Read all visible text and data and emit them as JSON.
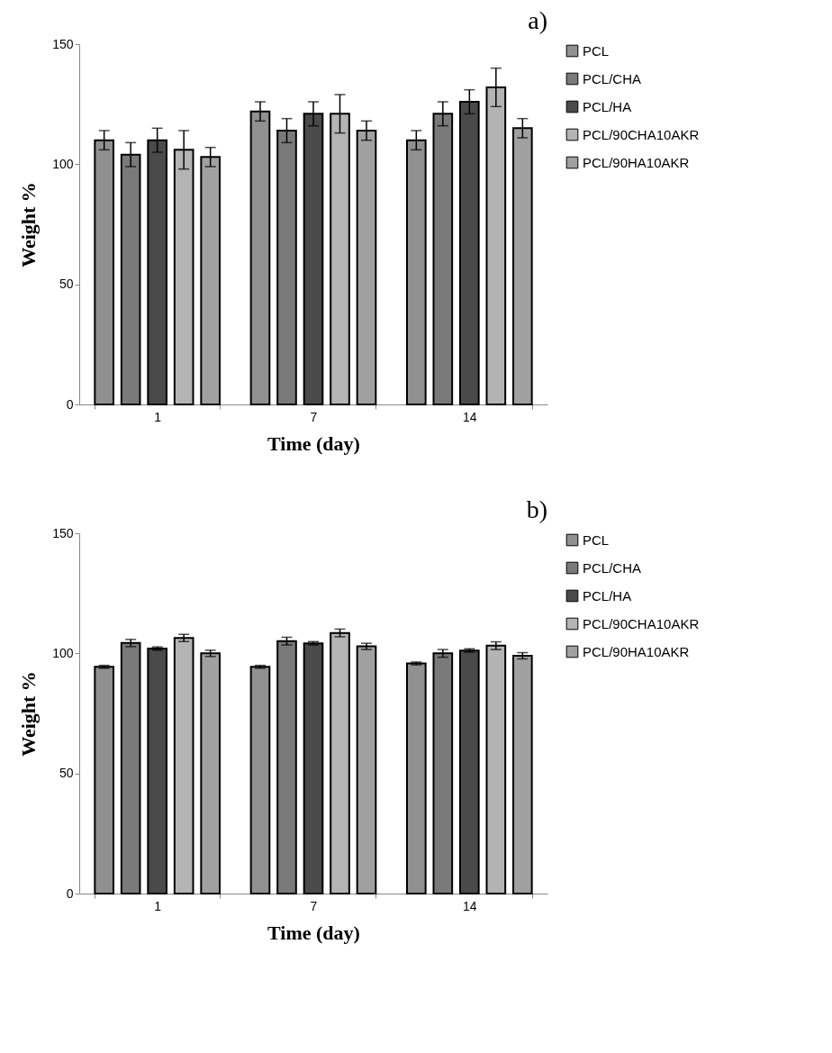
{
  "chart_data": [
    {
      "type": "bar",
      "title": "a)",
      "xlabel": "Time (day)",
      "ylabel": "Weight %",
      "categories": [
        "1",
        "7",
        "14"
      ],
      "ylim": [
        0,
        150
      ],
      "yticks": [
        0,
        50,
        100,
        150
      ],
      "grid": false,
      "legend": "right",
      "series": [
        {
          "name": "PCL",
          "color": "#909090",
          "values": [
            110,
            122,
            110
          ],
          "errors": [
            4,
            4,
            4
          ]
        },
        {
          "name": "PCL/CHA",
          "color": "#7a7a7a",
          "values": [
            104,
            114,
            121
          ],
          "errors": [
            5,
            5,
            5
          ]
        },
        {
          "name": "PCL/HA",
          "color": "#4a4a4a",
          "values": [
            110,
            121,
            126
          ],
          "errors": [
            5,
            5,
            5
          ]
        },
        {
          "name": "PCL/90CHA10AKR",
          "color": "#b4b4b4",
          "values": [
            106,
            121,
            132
          ],
          "errors": [
            8,
            8,
            8
          ]
        },
        {
          "name": "PCL/90HA10AKR",
          "color": "#a0a0a0",
          "values": [
            103,
            114,
            115
          ],
          "errors": [
            4,
            4,
            4
          ]
        }
      ]
    },
    {
      "type": "bar",
      "title": "b)",
      "xlabel": "Time (day)",
      "ylabel": "Weight %",
      "categories": [
        "1",
        "7",
        "14"
      ],
      "ylim": [
        0,
        150
      ],
      "yticks": [
        0,
        50,
        100,
        150
      ],
      "grid": false,
      "legend": "right",
      "series": [
        {
          "name": "PCL",
          "color": "#909090",
          "values": [
            94.4,
            94.4,
            95.8
          ],
          "errors": [
            0.6,
            0.6,
            0.6
          ]
        },
        {
          "name": "PCL/CHA",
          "color": "#7a7a7a",
          "values": [
            104.3,
            105.1,
            100
          ],
          "errors": [
            1.5,
            1.6,
            1.6
          ]
        },
        {
          "name": "PCL/HA",
          "color": "#4a4a4a",
          "values": [
            102,
            104.2,
            101.2
          ],
          "errors": [
            0.7,
            0.7,
            0.7
          ]
        },
        {
          "name": "PCL/90CHA10AKR",
          "color": "#b4b4b4",
          "values": [
            106.4,
            108.5,
            103.2
          ],
          "errors": [
            1.5,
            1.6,
            1.6
          ]
        },
        {
          "name": "PCL/90HA10AKR",
          "color": "#a0a0a0",
          "values": [
            100,
            102.9,
            99
          ],
          "errors": [
            1.3,
            1.3,
            1.3
          ]
        }
      ]
    }
  ]
}
